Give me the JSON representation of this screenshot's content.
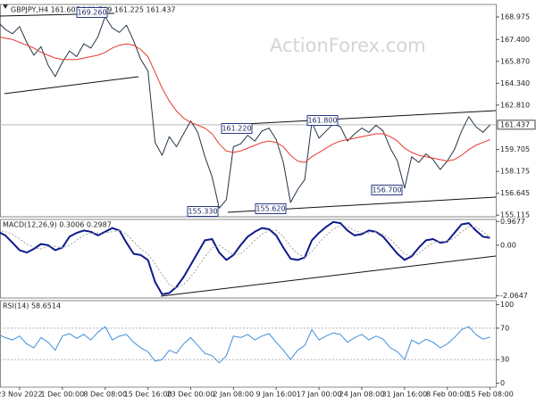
{
  "chart_data": [
    {
      "type": "line",
      "title": "GBPJPY,H4  161.607 161.709 161.225 161.437",
      "watermark": "ActionForex.com",
      "categories": [
        null,
        null,
        null,
        "23 Nov 2022",
        null,
        null,
        null,
        null,
        null,
        "1 Dec 00:00",
        null,
        null,
        null,
        null,
        null,
        "8 Dec 08:00",
        null,
        null,
        null,
        null,
        null,
        "15 Dec 16:00",
        null,
        null,
        null,
        null,
        null,
        "23 Dec 00:00",
        null,
        null,
        null,
        null,
        null,
        "2 Jan 08:00",
        null,
        null,
        null,
        null,
        null,
        "9 Jan 16:00",
        null,
        null,
        null,
        null,
        null,
        "17 Jan 00:00",
        null,
        null,
        null,
        null,
        null,
        "24 Jan 08:00",
        null,
        null,
        null,
        null,
        null,
        "31 Jan 16:00",
        null,
        null,
        null,
        null,
        null,
        "8 Feb 00:00",
        null,
        null,
        null,
        null,
        null,
        "15 Feb 08:00"
      ],
      "series": [
        {
          "color": "#263548",
          "values": [
            168.6,
            168.1,
            167.8,
            168.3,
            167.2,
            166.3,
            166.9,
            165.6,
            164.8,
            165.8,
            166.6,
            166.2,
            167.1,
            166.8,
            167.6,
            169.0,
            168.2,
            167.9,
            168.4,
            167.3,
            166.0,
            165.2,
            160.2,
            159.3,
            160.6,
            159.9,
            160.8,
            161.7,
            160.9,
            159.2,
            157.8,
            155.6,
            156.2,
            159.9,
            160.1,
            160.7,
            160.3,
            161.0,
            161.2,
            160.4,
            158.8,
            156.0,
            156.9,
            157.6,
            161.6,
            160.5,
            161.0,
            161.5,
            161.3,
            160.3,
            160.8,
            161.2,
            160.9,
            161.4,
            161.0,
            159.8,
            158.9,
            157.0,
            159.2,
            158.8,
            159.4,
            159.0,
            158.3,
            158.9,
            159.7,
            161.0,
            162.0,
            161.3,
            160.9,
            161.437
          ]
        },
        {
          "color": "#e53b2f",
          "values": [
            167.6,
            167.5,
            167.4,
            167.2,
            167.0,
            166.8,
            166.5,
            166.3,
            166.1,
            166.0,
            166.0,
            166.0,
            166.1,
            166.2,
            166.3,
            166.5,
            166.8,
            167.0,
            167.1,
            167.0,
            166.7,
            166.2,
            165.1,
            164.0,
            163.1,
            162.4,
            161.9,
            161.6,
            161.4,
            161.2,
            160.8,
            160.1,
            159.6,
            159.5,
            159.6,
            159.8,
            160.0,
            160.2,
            160.3,
            160.2,
            159.9,
            159.3,
            158.9,
            158.8,
            159.2,
            159.5,
            159.8,
            160.1,
            160.3,
            160.4,
            160.5,
            160.6,
            160.7,
            160.8,
            160.8,
            160.6,
            160.3,
            159.8,
            159.5,
            159.3,
            159.2,
            159.1,
            159.0,
            158.9,
            159.0,
            159.3,
            159.7,
            160.0,
            160.2,
            160.4
          ]
        }
      ],
      "ylim": [
        155.0,
        169.85
      ],
      "yticks": [
        168.975,
        {
          "value": 167.4,
          "label": "167.400"
        },
        {
          "value": 165.87,
          "label": "165.870"
        },
        {
          "value": 164.34,
          "label": "164.340"
        },
        {
          "value": 162.81,
          "label": "162.810"
        },
        159.705,
        158.175,
        156.645,
        155.115
      ],
      "annotations": [
        "169.260",
        "161.220",
        "161.800",
        "155.330",
        "155.620",
        "156.700"
      ]
    },
    {
      "type": "line",
      "title": "MACD(12,26,9) 0.3006 0.2987",
      "series": [
        {
          "color": "#0d1a8a",
          "values": [
            0.55,
            0.4,
            0.1,
            -0.2,
            -0.3,
            -0.15,
            0.05,
            0.0,
            -0.2,
            -0.1,
            0.35,
            0.5,
            0.6,
            0.55,
            0.4,
            0.55,
            0.7,
            0.6,
            0.1,
            -0.35,
            -0.4,
            -0.6,
            -1.5,
            -2.0,
            -1.95,
            -1.7,
            -1.3,
            -0.8,
            -0.3,
            0.2,
            0.25,
            -0.3,
            -0.6,
            -0.4,
            0.0,
            0.35,
            0.55,
            0.7,
            0.65,
            0.4,
            -0.1,
            -0.55,
            -0.6,
            -0.5,
            0.2,
            0.5,
            0.75,
            0.95,
            0.9,
            0.6,
            0.4,
            0.45,
            0.6,
            0.55,
            0.35,
            0.0,
            -0.35,
            -0.6,
            -0.45,
            -0.1,
            0.2,
            0.25,
            0.1,
            0.15,
            0.5,
            0.85,
            0.9,
            0.6,
            0.35,
            0.3006
          ]
        },
        {
          "color": "#a0a0a0",
          "dash": true,
          "values": [
            0.6,
            0.55,
            0.45,
            0.25,
            0.05,
            -0.1,
            -0.15,
            -0.05,
            -0.05,
            -0.1,
            0.0,
            0.2,
            0.4,
            0.5,
            0.5,
            0.5,
            0.55,
            0.6,
            0.45,
            0.15,
            -0.15,
            -0.35,
            -0.75,
            -1.2,
            -1.6,
            -1.75,
            -1.6,
            -1.3,
            -0.9,
            -0.45,
            -0.1,
            0.0,
            -0.2,
            -0.4,
            -0.35,
            -0.1,
            0.2,
            0.45,
            0.6,
            0.6,
            0.35,
            -0.05,
            -0.35,
            -0.5,
            -0.25,
            0.1,
            0.4,
            0.65,
            0.8,
            0.75,
            0.6,
            0.5,
            0.5,
            0.55,
            0.45,
            0.25,
            -0.05,
            -0.35,
            -0.45,
            -0.35,
            -0.1,
            0.1,
            0.15,
            0.15,
            0.3,
            0.55,
            0.75,
            0.75,
            0.55,
            0.2987
          ]
        }
      ],
      "ylim": [
        -2.15,
        1.05
      ],
      "yticks": [
        0.9677,
        {
          "value": 0,
          "label": "0.00"
        },
        -2.0647
      ]
    },
    {
      "type": "line",
      "title": "RSI(14) 58.6514",
      "series": [
        {
          "color": "#3d8fdb",
          "values": [
            62,
            58,
            55,
            60,
            50,
            45,
            58,
            52,
            42,
            60,
            63,
            57,
            62,
            55,
            65,
            72,
            55,
            60,
            62,
            52,
            45,
            40,
            28,
            30,
            42,
            38,
            50,
            58,
            48,
            38,
            35,
            26,
            35,
            60,
            58,
            62,
            55,
            60,
            63,
            52,
            42,
            30,
            42,
            48,
            68,
            55,
            60,
            64,
            62,
            52,
            58,
            62,
            55,
            60,
            56,
            45,
            40,
            30,
            55,
            50,
            56,
            52,
            45,
            50,
            58,
            68,
            72,
            62,
            56,
            58.6514
          ]
        }
      ],
      "ylim": [
        -5,
        105
      ],
      "yticks": [
        100,
        70,
        30,
        0
      ],
      "levels": [
        70,
        30
      ]
    }
  ]
}
